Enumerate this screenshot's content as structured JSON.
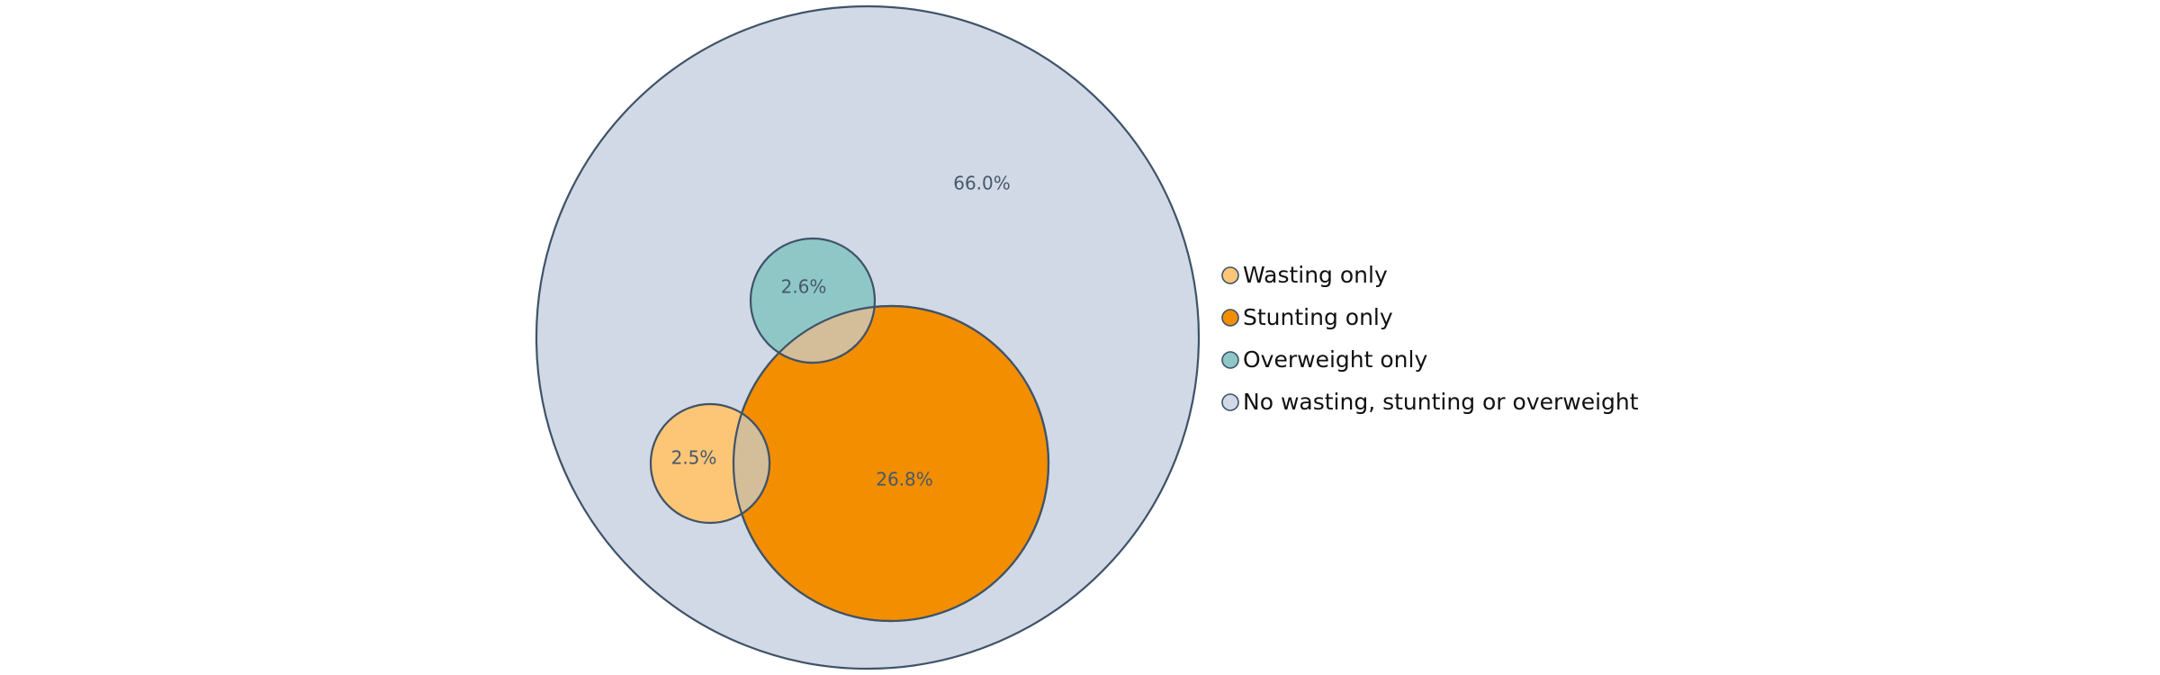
{
  "chart_data": {
    "type": "nested-circle",
    "title": "",
    "series": [
      {
        "name": "No wasting, stunting or overweight",
        "value": 66.0,
        "label": "66.0%",
        "color": "#d0d9e5"
      },
      {
        "name": "Stunting only",
        "value": 26.8,
        "label": "26.8%",
        "color": "#f28e00"
      },
      {
        "name": "Overweight only",
        "value": 2.6,
        "label": "2.6%",
        "color": "#8fc7c7"
      },
      {
        "name": "Wasting only",
        "value": 2.5,
        "label": "2.5%",
        "color": "#fdc677"
      }
    ],
    "legend": {
      "position": "right",
      "items": [
        "Wasting only",
        "Stunting only",
        "Overweight only",
        "No wasting, stunting or overweight"
      ]
    }
  },
  "colors": {
    "outline": "#3f5368",
    "overlap": "#d4bd99"
  }
}
